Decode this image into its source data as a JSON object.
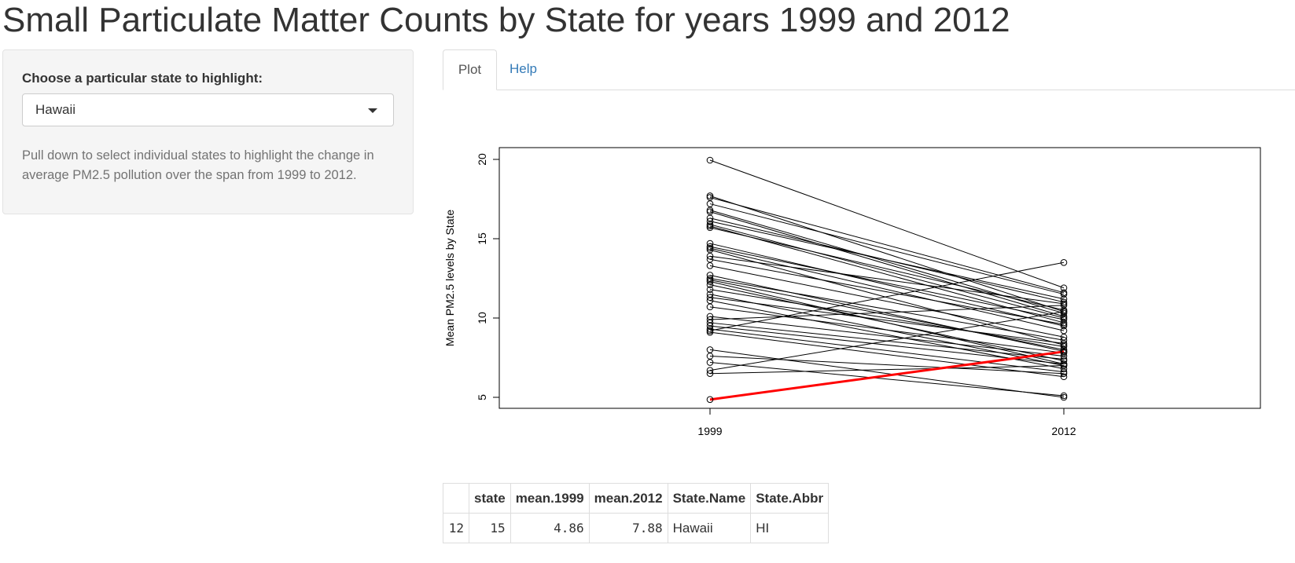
{
  "page": {
    "title": "Small Particulate Matter Counts by State for years 1999 and 2012"
  },
  "sidebar": {
    "label": "Choose a particular state to highlight:",
    "selected_state": "Hawaii",
    "help_text": "Pull down to select individual states to highlight the change in average PM2.5 pollution over the span from 1999 to 2012."
  },
  "tabs": [
    {
      "label": "Plot",
      "active": true
    },
    {
      "label": "Help",
      "active": false
    }
  ],
  "chart_data": {
    "type": "line",
    "title": "",
    "xlabel": "",
    "ylabel": "Mean PM2.5 levels by State",
    "x": [
      "1999",
      "2012"
    ],
    "ylim": [
      4.5,
      20.5
    ],
    "yticks": [
      5,
      10,
      15,
      20
    ],
    "line_color": "#000000",
    "highlight_color": "#ff0000",
    "series": [
      {
        "values": [
          19.95,
          11.9
        ]
      },
      {
        "values": [
          17.7,
          10.4
        ]
      },
      {
        "values": [
          17.6,
          11.6
        ]
      },
      {
        "values": [
          17.2,
          11.5
        ]
      },
      {
        "values": [
          16.8,
          10.3
        ]
      },
      {
        "values": [
          16.7,
          10.1
        ]
      },
      {
        "values": [
          16.3,
          11.0
        ]
      },
      {
        "values": [
          16.1,
          11.2
        ]
      },
      {
        "values": [
          15.9,
          10.0
        ]
      },
      {
        "values": [
          15.8,
          9.7
        ]
      },
      {
        "values": [
          15.7,
          10.5
        ]
      },
      {
        "values": [
          14.7,
          9.5
        ]
      },
      {
        "values": [
          14.5,
          9.9
        ]
      },
      {
        "values": [
          14.4,
          9.2
        ]
      },
      {
        "values": [
          14.3,
          8.3
        ]
      },
      {
        "values": [
          13.9,
          10.9
        ]
      },
      {
        "values": [
          13.7,
          9.6
        ]
      },
      {
        "values": [
          13.3,
          8.8
        ]
      },
      {
        "values": [
          12.7,
          7.9
        ]
      },
      {
        "values": [
          12.5,
          8.6
        ]
      },
      {
        "values": [
          12.4,
          8.0
        ]
      },
      {
        "values": [
          12.3,
          7.1
        ]
      },
      {
        "values": [
          12.1,
          7.3
        ]
      },
      {
        "values": [
          11.8,
          8.2
        ]
      },
      {
        "values": [
          11.5,
          7.0
        ]
      },
      {
        "values": [
          11.3,
          8.4
        ]
      },
      {
        "values": [
          11.1,
          6.8
        ]
      },
      {
        "values": [
          10.7,
          7.8
        ]
      },
      {
        "values": [
          10.1,
          7.6
        ]
      },
      {
        "values": [
          9.9,
          10.8
        ]
      },
      {
        "values": [
          9.7,
          7.4
        ]
      },
      {
        "values": [
          9.5,
          7.1
        ]
      },
      {
        "values": [
          9.3,
          6.6
        ]
      },
      {
        "values": [
          9.2,
          13.5
        ]
      },
      {
        "values": [
          9.1,
          6.3
        ]
      },
      {
        "values": [
          8.0,
          5.0
        ]
      },
      {
        "values": [
          7.6,
          6.5
        ]
      },
      {
        "values": [
          7.2,
          5.1
        ]
      },
      {
        "values": [
          6.7,
          10.4
        ]
      },
      {
        "values": [
          6.5,
          7.0
        ]
      },
      {
        "name": "Hawaii",
        "values": [
          4.86,
          7.88
        ],
        "highlight": true
      }
    ]
  },
  "table": {
    "columns": [
      "",
      "state",
      "mean.1999",
      "mean.2012",
      "State.Name",
      "State.Abbr"
    ],
    "row": [
      "12",
      "15",
      "4.86",
      "7.88",
      "Hawaii",
      "HI"
    ]
  }
}
